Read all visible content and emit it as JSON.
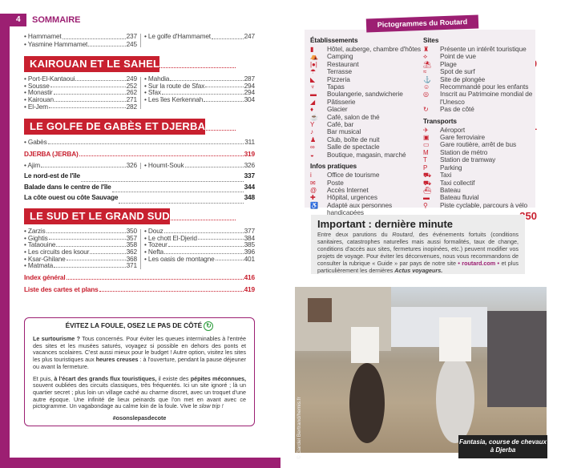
{
  "left": {
    "page_number": "4",
    "title": "SOMMAIRE",
    "intro_left": [
      {
        "label": "• Hammamet",
        "page": "237"
      },
      {
        "label": "• Yasmine Hammamet",
        "page": "245"
      }
    ],
    "intro_right": [
      {
        "label": "• Le golfe d'Hammamet",
        "page": "247"
      }
    ],
    "sections": {
      "kairouan": {
        "title": "KAIROUAN ET LE SAHEL",
        "page": "249",
        "left": [
          {
            "label": "• Port-El-Kantaoui",
            "page": "249"
          },
          {
            "label": "• Sousse",
            "page": "252"
          },
          {
            "label": "• Monastir",
            "page": "262"
          },
          {
            "label": "• Kairouan",
            "page": "271"
          },
          {
            "label": "• El-Jem",
            "page": "282"
          }
        ],
        "right": [
          {
            "label": "• Mahdia",
            "page": "287"
          },
          {
            "label": "• Sur la route de Sfax",
            "page": "294"
          },
          {
            "label": "• Sfax",
            "page": "294"
          },
          {
            "label": "• Les îles Kerkennah",
            "page": "304"
          }
        ]
      },
      "gabes": {
        "title": "LE GOLFE DE GABÈS ET DJERBA",
        "page": "311",
        "gabes": {
          "label": "• Gabès",
          "page": "311"
        },
        "djerba": {
          "label": "DJERBA (JERBA)",
          "page": "319"
        },
        "ajim": {
          "label": "• Ajim",
          "page": "326"
        },
        "houmt": {
          "label": "• Houmt-Souk",
          "page": "326"
        },
        "bold": [
          {
            "label": "Le nord-est de l'île",
            "page": "337"
          },
          {
            "label": "Balade dans le centre de l'île",
            "page": "344"
          },
          {
            "label": "La côte ouest ou côte Sauvage",
            "page": "348"
          }
        ]
      },
      "sud": {
        "title": "LE SUD ET LE GRAND SUD",
        "page": "350",
        "left": [
          {
            "label": "• Zarzis",
            "page": "350"
          },
          {
            "label": "• Gightis",
            "page": "357"
          },
          {
            "label": "• Tataouine",
            "page": "358"
          },
          {
            "label": "• Les circuits des ksour",
            "page": "362"
          },
          {
            "label": "• Ksar-Ghilane",
            "page": "368"
          },
          {
            "label": "• Matmata",
            "page": "371"
          }
        ],
        "right": [
          {
            "label": "• Douz",
            "page": "377"
          },
          {
            "label": "• Le chott El-Djerid",
            "page": "384"
          },
          {
            "label": "• Tozeur",
            "page": "385"
          },
          {
            "label": "• Nefta",
            "page": "396"
          },
          {
            "label": "• Les oasis de montagne",
            "page": "401"
          }
        ]
      }
    },
    "index": {
      "label": "Index général",
      "page": "416"
    },
    "maps": {
      "label": "Liste des cartes et plans",
      "page": "419"
    },
    "box": {
      "title": "ÉVITEZ LA FOULE, OSEZ LE PAS DE CÔTÉ",
      "p1_bold": "Le surtourisme ?",
      "p1_a": " Tous concernés. Pour éviter les queues interminables à l'entrée des sites et les musées saturés, voyagez si possible en dehors des ponts et vacances scolaires. C'est aussi mieux pour le budget ! Autre option, visitez les sites les plus touristiques aux ",
      "p1_bold2": "heures creuses",
      "p1_b": " : à l'ouverture, pendant la pause déjeuner ou avant la fermeture.",
      "p2_a": "Et puis, ",
      "p2_bold": "à l'écart des grands flux touristiques,",
      "p2_b": " il existe des ",
      "p2_bold2": "pépites méconnues,",
      "p2_c": " souvent oubliées des circuits classiques, très fréquentés. Ici un site ignoré ; là un quartier secret ; plus loin un village caché au charme discret, avec un troquet d'une autre époque. Une infinité de lieux peinards que l'on met en avant avec ce pictogramme. Un vagabondage au calme loin de la foule. Vive le ",
      "p2_italic": "slow trip !",
      "hashtag": "#osonslepasdecote"
    }
  },
  "right": {
    "tab": "Pictogrammes du Routard",
    "groups_left": [
      {
        "title": "Établissements",
        "items": [
          [
            "hotel-icon",
            "▮",
            "Hôtel, auberge, chambre d'hôtes"
          ],
          [
            "camping-icon",
            "⛺",
            "Camping"
          ],
          [
            "restaurant-icon",
            "|●|",
            "Restaurant"
          ],
          [
            "terrace-icon",
            "☂",
            "Terrasse"
          ],
          [
            "pizza-icon",
            "◣",
            "Pizzeria"
          ],
          [
            "tapas-icon",
            "♆",
            "Tapas"
          ],
          [
            "bakery-icon",
            "▬",
            "Boulangerie, sandwicherie"
          ],
          [
            "pastry-icon",
            "◢",
            "Pâtisserie"
          ],
          [
            "icecream-icon",
            "♦",
            "Glacier"
          ],
          [
            "tea-icon",
            "☕",
            "Café, salon de thé"
          ],
          [
            "bar-icon",
            "Y",
            "Café, bar"
          ],
          [
            "music-icon",
            "♪",
            "Bar musical"
          ],
          [
            "club-icon",
            "♟",
            "Club, boîte de nuit"
          ],
          [
            "theatre-icon",
            "∞",
            "Salle de spectacle"
          ],
          [
            "shop-icon",
            "◒",
            "Boutique, magasin, marché"
          ]
        ]
      },
      {
        "title": "Infos pratiques",
        "items": [
          [
            "tourism-office-icon",
            "i",
            "Office de tourisme"
          ],
          [
            "mail-icon",
            "✉",
            "Poste"
          ],
          [
            "internet-icon",
            "@",
            "Accès Internet"
          ],
          [
            "hospital-icon",
            "✚",
            "Hôpital, urgences"
          ],
          [
            "accessible-icon",
            "♿",
            "Adapté aux personnes handicapées"
          ]
        ]
      }
    ],
    "groups_right": [
      {
        "title": "Sites",
        "items": [
          [
            "sight-icon",
            "♜",
            "Présente un intérêt touristique"
          ],
          [
            "viewpoint-icon",
            "⟡",
            "Point de vue"
          ],
          [
            "beach-icon",
            "⛱",
            "Plage"
          ],
          [
            "surf-icon",
            "≈",
            "Spot de surf"
          ],
          [
            "diving-icon",
            "⚓",
            "Site de plongée"
          ],
          [
            "kids-icon",
            "☺",
            "Recommandé pour les enfants"
          ],
          [
            "unesco-icon",
            "◎",
            "Inscrit au Patrimoine mondial de l'Unesco"
          ],
          [
            "side-step-icon",
            "↻",
            "Pas de côté"
          ]
        ]
      },
      {
        "title": "Transports",
        "items": [
          [
            "airport-icon",
            "✈",
            "Aéroport"
          ],
          [
            "train-icon",
            "▣",
            "Gare ferroviaire"
          ],
          [
            "bus-icon",
            "▭",
            "Gare routière, arrêt de bus"
          ],
          [
            "metro-icon",
            "M",
            "Station de métro"
          ],
          [
            "tram-icon",
            "T",
            "Station de tramway"
          ],
          [
            "parking-icon",
            "P",
            "Parking"
          ],
          [
            "taxi-icon",
            "⛟",
            "Taxi"
          ],
          [
            "shared-taxi-icon",
            "⛟",
            "Taxi collectif"
          ],
          [
            "boat-icon",
            "⛴",
            "Bateau"
          ],
          [
            "river-boat-icon",
            "▬",
            "Bateau fluvial"
          ],
          [
            "bike-icon",
            "⚲",
            "Piste cyclable, parcours à vélo"
          ]
        ]
      }
    ],
    "important": {
      "title": "Important : dernière minute",
      "a": "Entre deux parutions du ",
      "routard": "Routard",
      "b": ", des événements fortuits (conditions sanitaires, catastrophes naturelles mais aussi formalités, taux de change, conditions d'accès aux sites, fermetures inopinées, etc.) peuvent modifier vos projets de voyage. Pour éviter les déconvenues, nous vous recommandons de consulter la rubrique « Guide » par pays de notre site ",
      "link": "• routard.com •",
      "c": " et plus particulièrement les dernières ",
      "actus": "Actus voyageurs."
    },
    "photo": {
      "caption": "Fantasia, course de chevaux à Djerba",
      "credit": "© Gardel Bertrand/hemis.fr"
    }
  },
  "colors": {
    "purple": "#9c1f72",
    "red": "#c8202f"
  }
}
